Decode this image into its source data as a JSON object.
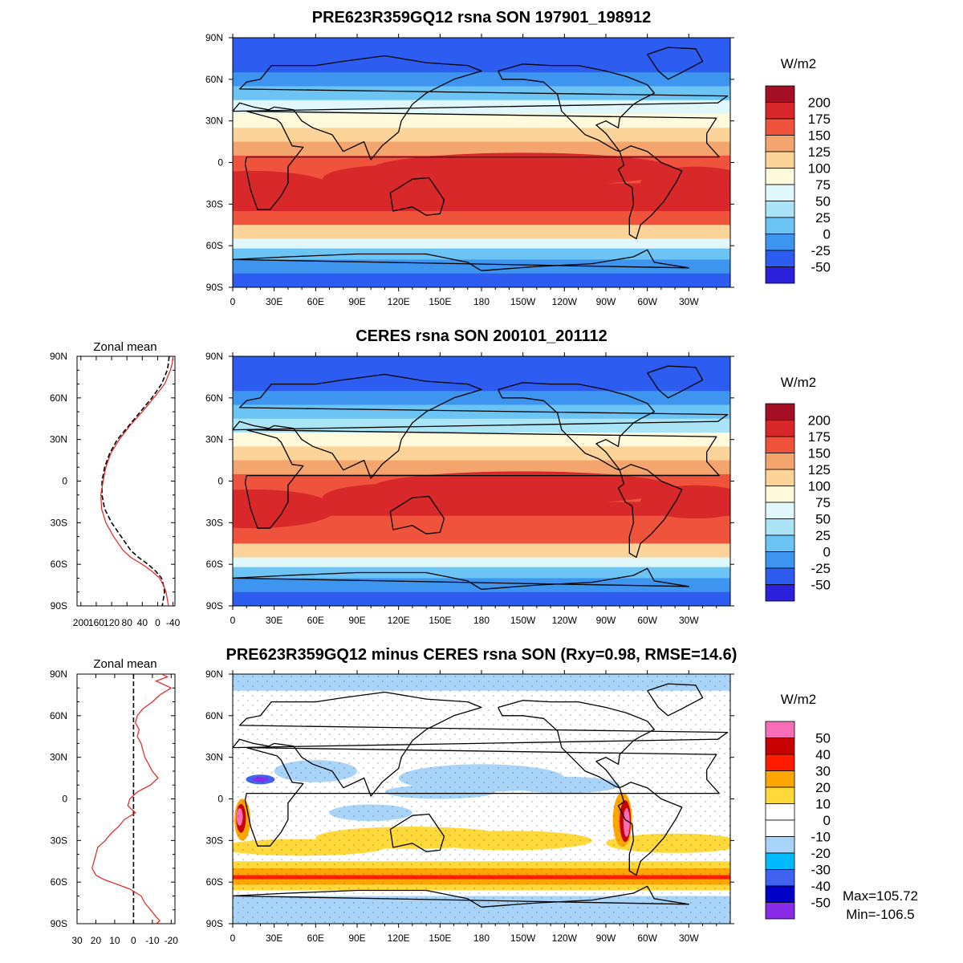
{
  "chart_data": [
    {
      "type": "heatmap",
      "title": "PRE623R359GQ12 rsna SON 197901_198912",
      "units": "W/m2",
      "x_ticks": [
        "0",
        "30E",
        "60E",
        "90E",
        "120E",
        "150E",
        "180",
        "150W",
        "120W",
        "90W",
        "60W",
        "30W"
      ],
      "y_ticks": [
        "90N",
        "60N",
        "30N",
        "0",
        "30S",
        "60S",
        "90S"
      ],
      "colorbar": {
        "labels": [
          "200",
          "175",
          "150",
          "125",
          "100",
          "75",
          "50",
          "25",
          "0",
          "-25",
          "-50"
        ],
        "colors": [
          "#a50f26",
          "#d8282a",
          "#f0533c",
          "#f4a56e",
          "#fcd399",
          "#fffadb",
          "#e0f7fb",
          "#a9e5f6",
          "#6cc4f4",
          "#3e95f0",
          "#2c5df0",
          "#2b20dc"
        ]
      },
      "zonal_bands_lat_value": [
        [
          90,
          -45
        ],
        [
          75,
          -30
        ],
        [
          65,
          -10
        ],
        [
          55,
          20
        ],
        [
          45,
          50
        ],
        [
          35,
          90
        ],
        [
          25,
          115
        ],
        [
          15,
          140
        ],
        [
          5,
          150
        ],
        [
          -5,
          165
        ],
        [
          -15,
          185
        ],
        [
          -25,
          175
        ],
        [
          -35,
          150
        ],
        [
          -45,
          110
        ],
        [
          -55,
          60
        ],
        [
          -62,
          20
        ],
        [
          -70,
          -20
        ],
        [
          -80,
          -35
        ]
      ]
    },
    {
      "type": "heatmap",
      "title": "CERES rsna SON 200101_201112",
      "units": "W/m2",
      "x_ticks": [
        "0",
        "30E",
        "60E",
        "90E",
        "120E",
        "150E",
        "180",
        "150W",
        "120W",
        "90W",
        "60W",
        "30W"
      ],
      "y_ticks": [
        "90N",
        "60N",
        "30N",
        "0",
        "30S",
        "60S",
        "90S"
      ],
      "colorbar": {
        "labels": [
          "200",
          "175",
          "150",
          "125",
          "100",
          "75",
          "50",
          "25",
          "0",
          "-25",
          "-50"
        ],
        "colors": [
          "#a50f26",
          "#d8282a",
          "#f0533c",
          "#f4a56e",
          "#fcd399",
          "#fffadb",
          "#e0f7fb",
          "#a9e5f6",
          "#6cc4f4",
          "#3e95f0",
          "#2c5df0",
          "#2b20dc"
        ]
      },
      "zonal_bands_lat_value": [
        [
          90,
          -45
        ],
        [
          75,
          -30
        ],
        [
          65,
          -10
        ],
        [
          55,
          15
        ],
        [
          45,
          45
        ],
        [
          35,
          85
        ],
        [
          25,
          115
        ],
        [
          15,
          140
        ],
        [
          5,
          155
        ],
        [
          -5,
          165
        ],
        [
          -15,
          180
        ],
        [
          -25,
          170
        ],
        [
          -35,
          150
        ],
        [
          -45,
          105
        ],
        [
          -55,
          55
        ],
        [
          -62,
          15
        ],
        [
          -70,
          -20
        ],
        [
          -80,
          -35
        ]
      ]
    },
    {
      "type": "heatmap",
      "title": "PRE623R359GQ12 minus CERES rsna SON (Rxy=0.98, RMSE=14.6)",
      "units": "W/m2",
      "max_label": "Max=105.72",
      "min_label": "Min=-106.5",
      "x_ticks": [
        "0",
        "30E",
        "60E",
        "90E",
        "120E",
        "150E",
        "180",
        "150W",
        "120W",
        "90W",
        "60W",
        "30W"
      ],
      "y_ticks": [
        "90N",
        "60N",
        "30N",
        "0",
        "30S",
        "60S",
        "90S"
      ],
      "colorbar": {
        "labels": [
          "50",
          "40",
          "30",
          "20",
          "10",
          "0",
          "-10",
          "-20",
          "-30",
          "-40",
          "-50"
        ],
        "colors": [
          "#f76db8",
          "#c80000",
          "#ff1a00",
          "#ffa500",
          "#ffd93a",
          "#ffffff",
          "#ffffff",
          "#a8d4fa",
          "#00baff",
          "#3f63f0",
          "#0000c8",
          "#8a2be8"
        ]
      }
    },
    {
      "type": "line",
      "title": "Zonal mean",
      "y_ticks": [
        "90N",
        "60N",
        "30N",
        "0",
        "30S",
        "60S",
        "90S"
      ],
      "x_ticks": [
        "200",
        "160",
        "120",
        "80",
        "40",
        "0",
        "-40"
      ],
      "x_range": [
        210,
        -45
      ],
      "series": [
        {
          "color": "#000000",
          "dashed": true,
          "lat": [
            90,
            85,
            80,
            70,
            60,
            50,
            40,
            30,
            20,
            10,
            0,
            -10,
            -20,
            -30,
            -40,
            -50,
            -55,
            -60,
            -65,
            -70,
            -75,
            -80,
            -85,
            -90
          ],
          "values": [
            -30,
            -28,
            -25,
            -10,
            15,
            45,
            75,
            105,
            125,
            138,
            145,
            145,
            138,
            120,
            95,
            70,
            50,
            25,
            5,
            -10,
            -15,
            -18,
            -15,
            -12
          ]
        },
        {
          "color": "#e8201c",
          "dashed": false,
          "lat": [
            90,
            85,
            80,
            70,
            60,
            50,
            40,
            30,
            20,
            10,
            0,
            -10,
            -20,
            -30,
            -40,
            -50,
            -55,
            -60,
            -65,
            -70,
            -75,
            -80,
            -85,
            -90
          ],
          "values": [
            -40,
            -38,
            -33,
            -18,
            10,
            40,
            72,
            100,
            122,
            135,
            142,
            148,
            146,
            135,
            115,
            90,
            70,
            40,
            15,
            -5,
            -15,
            -22,
            -25,
            -28
          ]
        }
      ]
    },
    {
      "type": "line",
      "title": "Zonal mean",
      "y_ticks": [
        "90N",
        "60N",
        "30N",
        "0",
        "30S",
        "60S",
        "90S"
      ],
      "x_ticks": [
        "30",
        "20",
        "10",
        "0",
        "-10",
        "-20"
      ],
      "x_range": [
        30,
        -22
      ],
      "series": [
        {
          "color": "#000000",
          "dashed": true,
          "lat": [
            90,
            -90
          ],
          "values": [
            0,
            0
          ]
        },
        {
          "color": "#e8201c",
          "dashed": false,
          "lat": [
            90,
            88,
            85,
            80,
            75,
            70,
            65,
            60,
            55,
            50,
            45,
            40,
            35,
            30,
            25,
            20,
            15,
            10,
            5,
            0,
            -5,
            -10,
            -15,
            -20,
            -25,
            -30,
            -35,
            -40,
            -45,
            -50,
            -55,
            -58,
            -62,
            -65,
            -70,
            -75,
            -80,
            -85,
            -88,
            -90
          ],
          "values": [
            -15,
            -18,
            -12,
            -20,
            -14,
            -10,
            -5,
            -2,
            -1,
            -3,
            -2,
            -4,
            -5,
            -6,
            -8,
            -10,
            -13,
            -9,
            -2,
            2,
            3,
            -1,
            5,
            8,
            12,
            15,
            19,
            20,
            21,
            22,
            20,
            16,
            8,
            2,
            -4,
            -6,
            -9,
            -12,
            -14,
            -12
          ]
        }
      ]
    }
  ]
}
